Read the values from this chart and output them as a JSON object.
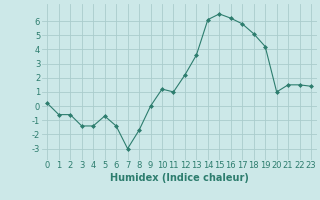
{
  "x": [
    0,
    1,
    2,
    3,
    4,
    5,
    6,
    7,
    8,
    9,
    10,
    11,
    12,
    13,
    14,
    15,
    16,
    17,
    18,
    19,
    20,
    21,
    22,
    23
  ],
  "y": [
    0.2,
    -0.6,
    -0.6,
    -1.4,
    -1.4,
    -0.7,
    -1.4,
    -3.0,
    -1.7,
    0.0,
    1.2,
    1.0,
    2.2,
    3.6,
    6.1,
    6.5,
    6.2,
    5.8,
    5.1,
    4.2,
    1.0,
    1.5,
    1.5,
    1.4
  ],
  "line_color": "#2d7d6e",
  "marker": "D",
  "marker_size": 2.0,
  "bg_color": "#cce8e8",
  "grid_color": "#aacccc",
  "xlabel": "Humidex (Indice chaleur)",
  "xlim": [
    -0.5,
    23.5
  ],
  "ylim": [
    -3.8,
    7.2
  ],
  "yticks": [
    -3,
    -2,
    -1,
    0,
    1,
    2,
    3,
    4,
    5,
    6
  ],
  "xticks": [
    0,
    1,
    2,
    3,
    4,
    5,
    6,
    7,
    8,
    9,
    10,
    11,
    12,
    13,
    14,
    15,
    16,
    17,
    18,
    19,
    20,
    21,
    22,
    23
  ],
  "tick_fontsize": 6,
  "xlabel_fontsize": 7,
  "label_color": "#2d7d6e"
}
